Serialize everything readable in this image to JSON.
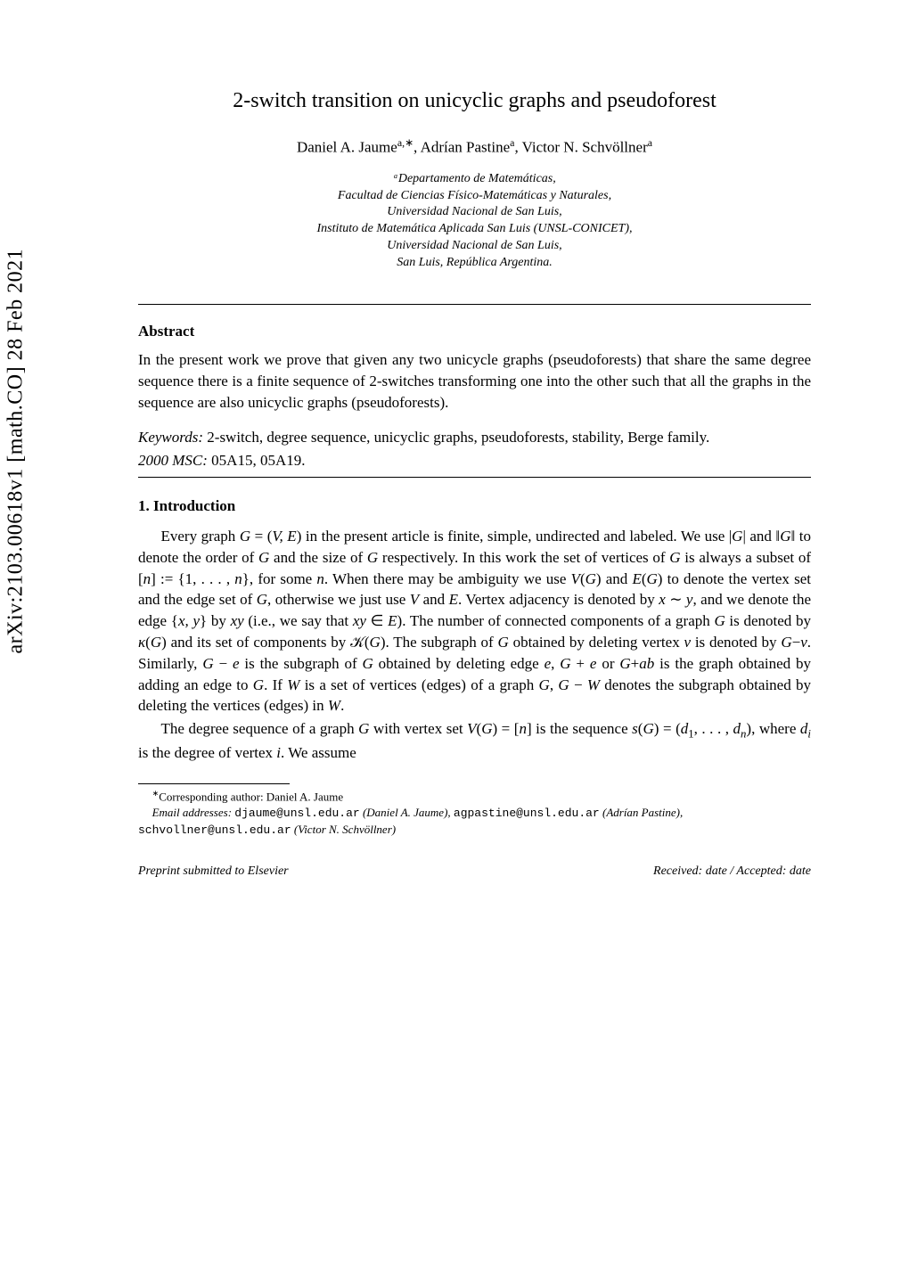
{
  "arxiv": "arXiv:2103.00618v1  [math.CO]  28 Feb 2021",
  "title": "2-switch transition on unicyclic graphs and pseudoforest",
  "authors_html": "Daniel A. Jaume<sup>a,∗</sup>, Adrían Pastine<sup>a</sup>, Victor N. Schvöllner<sup>a</sup>",
  "affiliation_lines": [
    "ᵃDepartamento de Matemáticas,",
    "Facultad de Ciencias Físico-Matemáticas y Naturales,",
    "Universidad Nacional de San Luis,",
    "Instituto de Matemática Aplicada San Luis (UNSL-CONICET),",
    "Universidad Nacional de San Luis,",
    "San Luis, República Argentina."
  ],
  "abstract_heading": "Abstract",
  "abstract_body": "In the present work we prove that given any two unicycle graphs (pseudoforests) that share the same degree sequence there is a finite sequence of 2-switches transforming one into the other such that all the graphs in the sequence are also unicyclic graphs (pseudoforests).",
  "keywords_label": "Keywords:",
  "keywords_text": "2-switch, degree sequence, unicyclic graphs, pseudoforests, stability, Berge family.",
  "msc_label": "2000 MSC:",
  "msc_text": "05A15, 05A19.",
  "section_heading": "1. Introduction",
  "paragraph1_html": "Every graph <span class=\"math\">G</span> = (<span class=\"math\">V, E</span>) in the present article is finite, simple, undirected and labeled. We use |<span class=\"math\">G</span>| and ‖<span class=\"math\">G</span>‖ to denote the order of <span class=\"math\">G</span> and the size of <span class=\"math\">G</span> respectively. In this work the set of vertices of <span class=\"math\">G</span> is always a subset of [<span class=\"math\">n</span>] := {1, . . . , <span class=\"math\">n</span>}, for some <span class=\"math\">n</span>. When there may be ambiguity we use <span class=\"math\">V</span>(<span class=\"math\">G</span>) and <span class=\"math\">E</span>(<span class=\"math\">G</span>) to denote the vertex set and the edge set of <span class=\"math\">G</span>, otherwise we just use <span class=\"math\">V</span> and <span class=\"math\">E</span>. Vertex adjacency is denoted by <span class=\"math\">x</span> ∼ <span class=\"math\">y</span>, and we denote the edge {<span class=\"math\">x, y</span>} by <span class=\"math\">xy</span> (i.e., we say that <span class=\"math\">xy</span> ∈ <span class=\"math\">E</span>). The number of connected components of a graph <span class=\"math\">G</span> is denoted by <span class=\"math\">κ</span>(<span class=\"math\">G</span>) and its set of components by 𝒦(<span class=\"math\">G</span>). The subgraph of <span class=\"math\">G</span> obtained by deleting vertex <span class=\"math\">v</span> is denoted by <span class=\"math\">G</span>−<span class=\"math\">v</span>. Similarly, <span class=\"math\">G</span> − <span class=\"math\">e</span> is the subgraph of <span class=\"math\">G</span> obtained by deleting edge <span class=\"math\">e</span>, <span class=\"math\">G</span> + <span class=\"math\">e</span> or <span class=\"math\">G</span>+<span class=\"math\">ab</span> is the graph obtained by adding an edge to <span class=\"math\">G</span>. If <span class=\"math\">W</span> is a set of vertices (edges) of a graph <span class=\"math\">G</span>, <span class=\"math\">G</span> − <span class=\"math\">W</span> denotes the subgraph obtained by deleting the vertices (edges) in <span class=\"math\">W</span>.",
  "paragraph2_html": "The degree sequence of a graph <span class=\"math\">G</span> with vertex set <span class=\"math\">V</span>(<span class=\"math\">G</span>) = [<span class=\"math\">n</span>] is the sequence <span class=\"math\">s</span>(<span class=\"math\">G</span>) = (<span class=\"math\">d</span><sub>1</sub>, . . . , <span class=\"math\">d<sub>n</sub></span>), where <span class=\"math\">d<sub>i</sub></span> is the degree of vertex <span class=\"math\">i</span>. We assume",
  "footnote_corresponding_html": "<sup>∗</sup>Corresponding author: Daniel A. Jaume",
  "footnote_emails_html": "<span class=\"math\">Email addresses:</span> <span class=\"tt\">djaume@unsl.edu.ar</span> (Daniel A. Jaume), <span class=\"tt\">agpastine@unsl.edu.ar</span> (Adrían Pastine), <span class=\"tt\">schvollner@unsl.edu.ar</span> (Victor N. Schvöllner)",
  "footer_left": "Preprint submitted to Elsevier",
  "footer_right": "Received: date / Accepted: date"
}
